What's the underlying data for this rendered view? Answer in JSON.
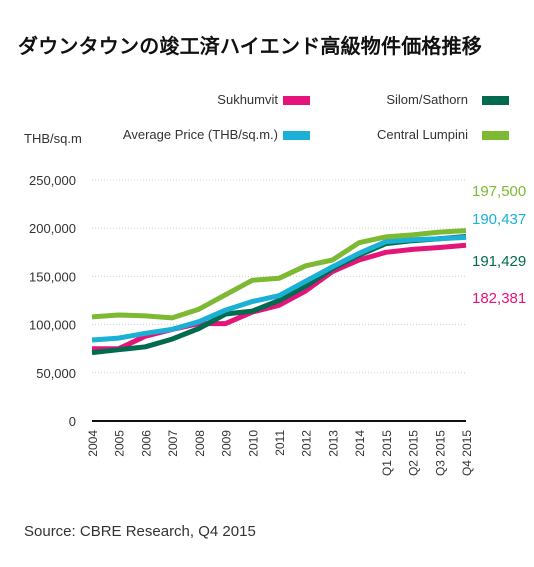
{
  "title": "ダウンタウンの竣工済ハイエンド高級物件価格推移",
  "source": "Source: CBRE Research, Q4 2015",
  "chart_data": {
    "type": "line",
    "title": "ダウンタウンの竣工済ハイエンド高級物件価格推移",
    "ylabel": "THB/sq.m",
    "xlabel": "",
    "ylim": [
      0,
      250000
    ],
    "yticks": [
      0,
      50000,
      100000,
      150000,
      200000,
      250000
    ],
    "ytick_labels": [
      "0",
      "50,000",
      "100,000",
      "150,000",
      "200,000",
      "250,000"
    ],
    "grid": true,
    "legend_position": "top",
    "categories": [
      "2004",
      "2005",
      "2006",
      "2007",
      "2008",
      "2009",
      "2010",
      "2011",
      "2012",
      "2013",
      "2014",
      "Q1 2015",
      "Q2 2015",
      "Q3 2015",
      "Q4 2015"
    ],
    "series": [
      {
        "name": "Sukhumvit",
        "color": "#E5147A",
        "values": [
          75000,
          75000,
          88000,
          95000,
          101000,
          101000,
          113000,
          120000,
          135000,
          155000,
          167000,
          175000,
          178000,
          180000,
          182381
        ],
        "end_label": "182,381"
      },
      {
        "name": "Silom/Sathorn",
        "color": "#006B4E",
        "values": [
          71000,
          74000,
          77000,
          85000,
          96000,
          111000,
          114000,
          125000,
          140000,
          158000,
          172000,
          184000,
          187000,
          189000,
          191429
        ],
        "end_label": "191,429"
      },
      {
        "name": "Average Price (THB/sq.m.)",
        "color": "#1BB0D6",
        "values": [
          84000,
          86000,
          91000,
          95000,
          103000,
          115000,
          124000,
          130000,
          145000,
          160000,
          174000,
          186000,
          188000,
          189000,
          190437
        ],
        "end_label": "190,437"
      },
      {
        "name": "Central Lumpini",
        "color": "#7DB932",
        "values": [
          108000,
          110000,
          109000,
          107000,
          116000,
          131000,
          146000,
          148000,
          161000,
          167000,
          185000,
          191000,
          193000,
          196000,
          197500
        ],
        "end_label": "197,500"
      }
    ]
  }
}
